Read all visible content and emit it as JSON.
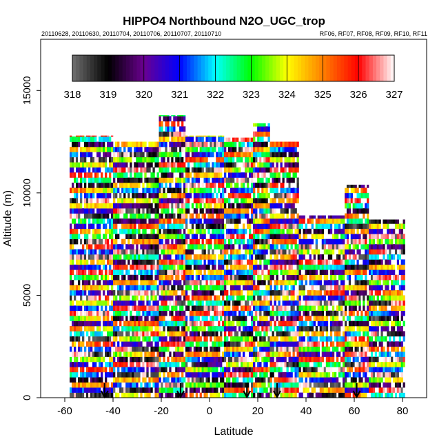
{
  "chart_data": {
    "type": "heatmap",
    "title": "HIPPO4 Northbound N2O_UGC_trop",
    "subtitle_dates": "20110628, 20110630, 20110704, 20110706, 20110707, 20110710",
    "subtitle_flights": "RF06, RF07, RF08, RF09, RF10, RF11",
    "xlabel": "Latitude",
    "ylabel": "Altitude (m)",
    "xlim": [
      -70,
      90
    ],
    "ylim": [
      0,
      17500
    ],
    "x_ticks": [
      -60,
      -40,
      -20,
      0,
      20,
      40,
      60,
      80
    ],
    "x_tick_labels": [
      "-60",
      "-40",
      "-20",
      "0",
      "20",
      "40",
      "60",
      "80"
    ],
    "y_ticks": [
      0,
      5000,
      10000,
      15000
    ],
    "y_tick_labels": [
      "0",
      "5000",
      "10000",
      "15000"
    ],
    "colorbar": {
      "min": 318,
      "max": 327,
      "ticks": [
        318,
        319,
        320,
        321,
        322,
        323,
        324,
        325,
        326,
        327
      ],
      "tick_labels": [
        "318",
        "319",
        "320",
        "321",
        "322",
        "323",
        "324",
        "325",
        "326",
        "327"
      ],
      "color_stops": [
        "#707070",
        "#000000",
        "#6a0090",
        "#0000ff",
        "#00ffff",
        "#00ff00",
        "#ffff00",
        "#ff8000",
        "#ff0000",
        "#ffffff"
      ]
    },
    "profiles": [
      {
        "lat_start": -58,
        "lat_end": -40,
        "top": 12800
      },
      {
        "lat_start": -40,
        "lat_end": -21,
        "top": 12500
      },
      {
        "lat_start": -21,
        "lat_end": -10,
        "top": 13800
      },
      {
        "lat_start": -10,
        "lat_end": 6,
        "top": 12800
      },
      {
        "lat_start": 6,
        "lat_end": 18,
        "top": 12700
      },
      {
        "lat_start": 18,
        "lat_end": 25,
        "top": 13400
      },
      {
        "lat_start": 25,
        "lat_end": 37,
        "top": 12500
      },
      {
        "lat_start": 37,
        "lat_end": 56,
        "top": 8900
      },
      {
        "lat_start": 56,
        "lat_end": 66,
        "top": 10400
      },
      {
        "lat_start": 66,
        "lat_end": 81,
        "top": 8700
      }
    ],
    "arrows_latitudes": [
      -43.5,
      -12,
      15.5,
      28,
      61
    ]
  }
}
